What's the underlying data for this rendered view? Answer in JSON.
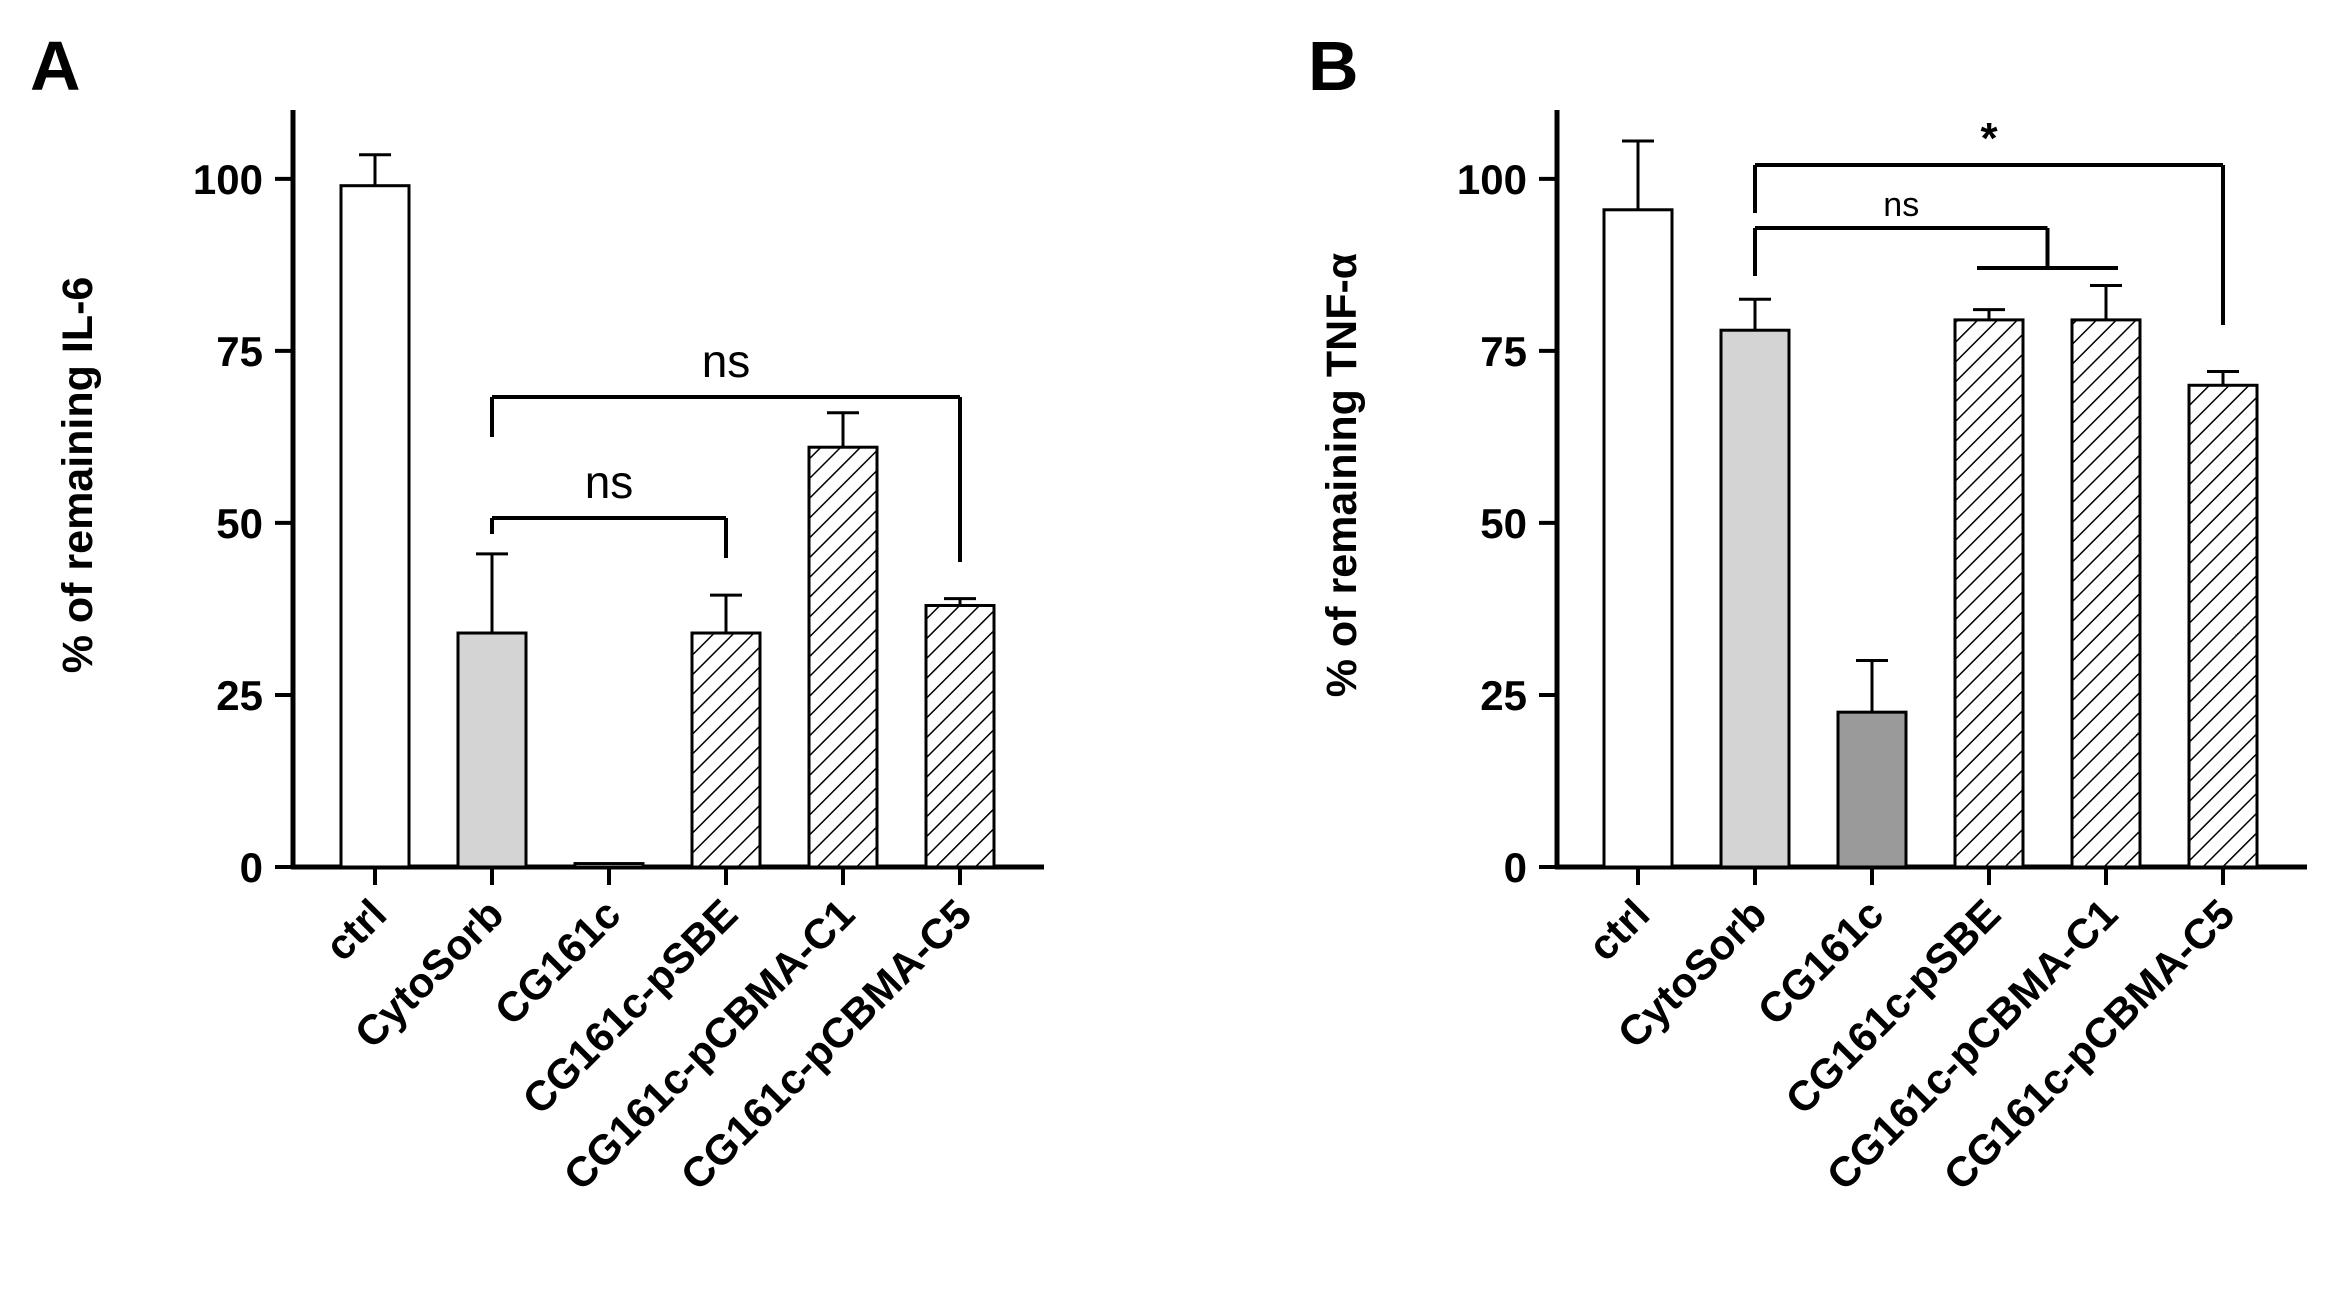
{
  "chart_data": [
    {
      "type": "bar",
      "panel": "A",
      "ylabel": "% of remaining IL-6",
      "ylim": [
        0,
        110
      ],
      "yticks": [
        "0",
        "25",
        "50",
        "75",
        "100"
      ],
      "categories": [
        "ctrl",
        "CytoSorb",
        "CG161c",
        "CG161c-pSBE",
        "CG161c-pCBMA-C1",
        "CG161c-pCBMA-C5"
      ],
      "values": [
        99,
        34,
        0.5,
        34,
        61,
        38
      ],
      "errors": [
        4.5,
        11.5,
        0,
        5.5,
        5,
        1
      ],
      "fills": [
        "white",
        "lightgray",
        "white",
        "hatch",
        "hatch",
        "hatch"
      ],
      "significance": [
        {
          "from": 1,
          "to": 3,
          "label": "ns"
        },
        {
          "from": 1,
          "to": 5,
          "label": "ns"
        }
      ]
    },
    {
      "type": "bar",
      "panel": "B",
      "ylabel": "% of remaining TNF-α",
      "ylim": [
        0,
        110
      ],
      "yticks": [
        "0",
        "25",
        "50",
        "75",
        "100"
      ],
      "categories": [
        "ctrl",
        "CytoSorb",
        "CG161c",
        "CG161c-pSBE",
        "CG161c-pCBMA-C1",
        "CG161c-pCBMA-C5"
      ],
      "values": [
        95.5,
        78,
        22.5,
        79.5,
        79.5,
        70
      ],
      "errors": [
        10,
        4.5,
        7.5,
        1.5,
        5,
        2
      ],
      "fills": [
        "white",
        "lightgray",
        "darkgray",
        "hatch",
        "hatch",
        "hatch"
      ],
      "significance": [
        {
          "from": 1,
          "to": 3.5,
          "label": "ns"
        },
        {
          "from": 1,
          "to": 5,
          "label": "*"
        }
      ]
    }
  ],
  "colors": {
    "lightgray": "#d4d4d4",
    "darkgray": "#9a9a9a",
    "white": "#ffffff",
    "ink": "#000000"
  }
}
